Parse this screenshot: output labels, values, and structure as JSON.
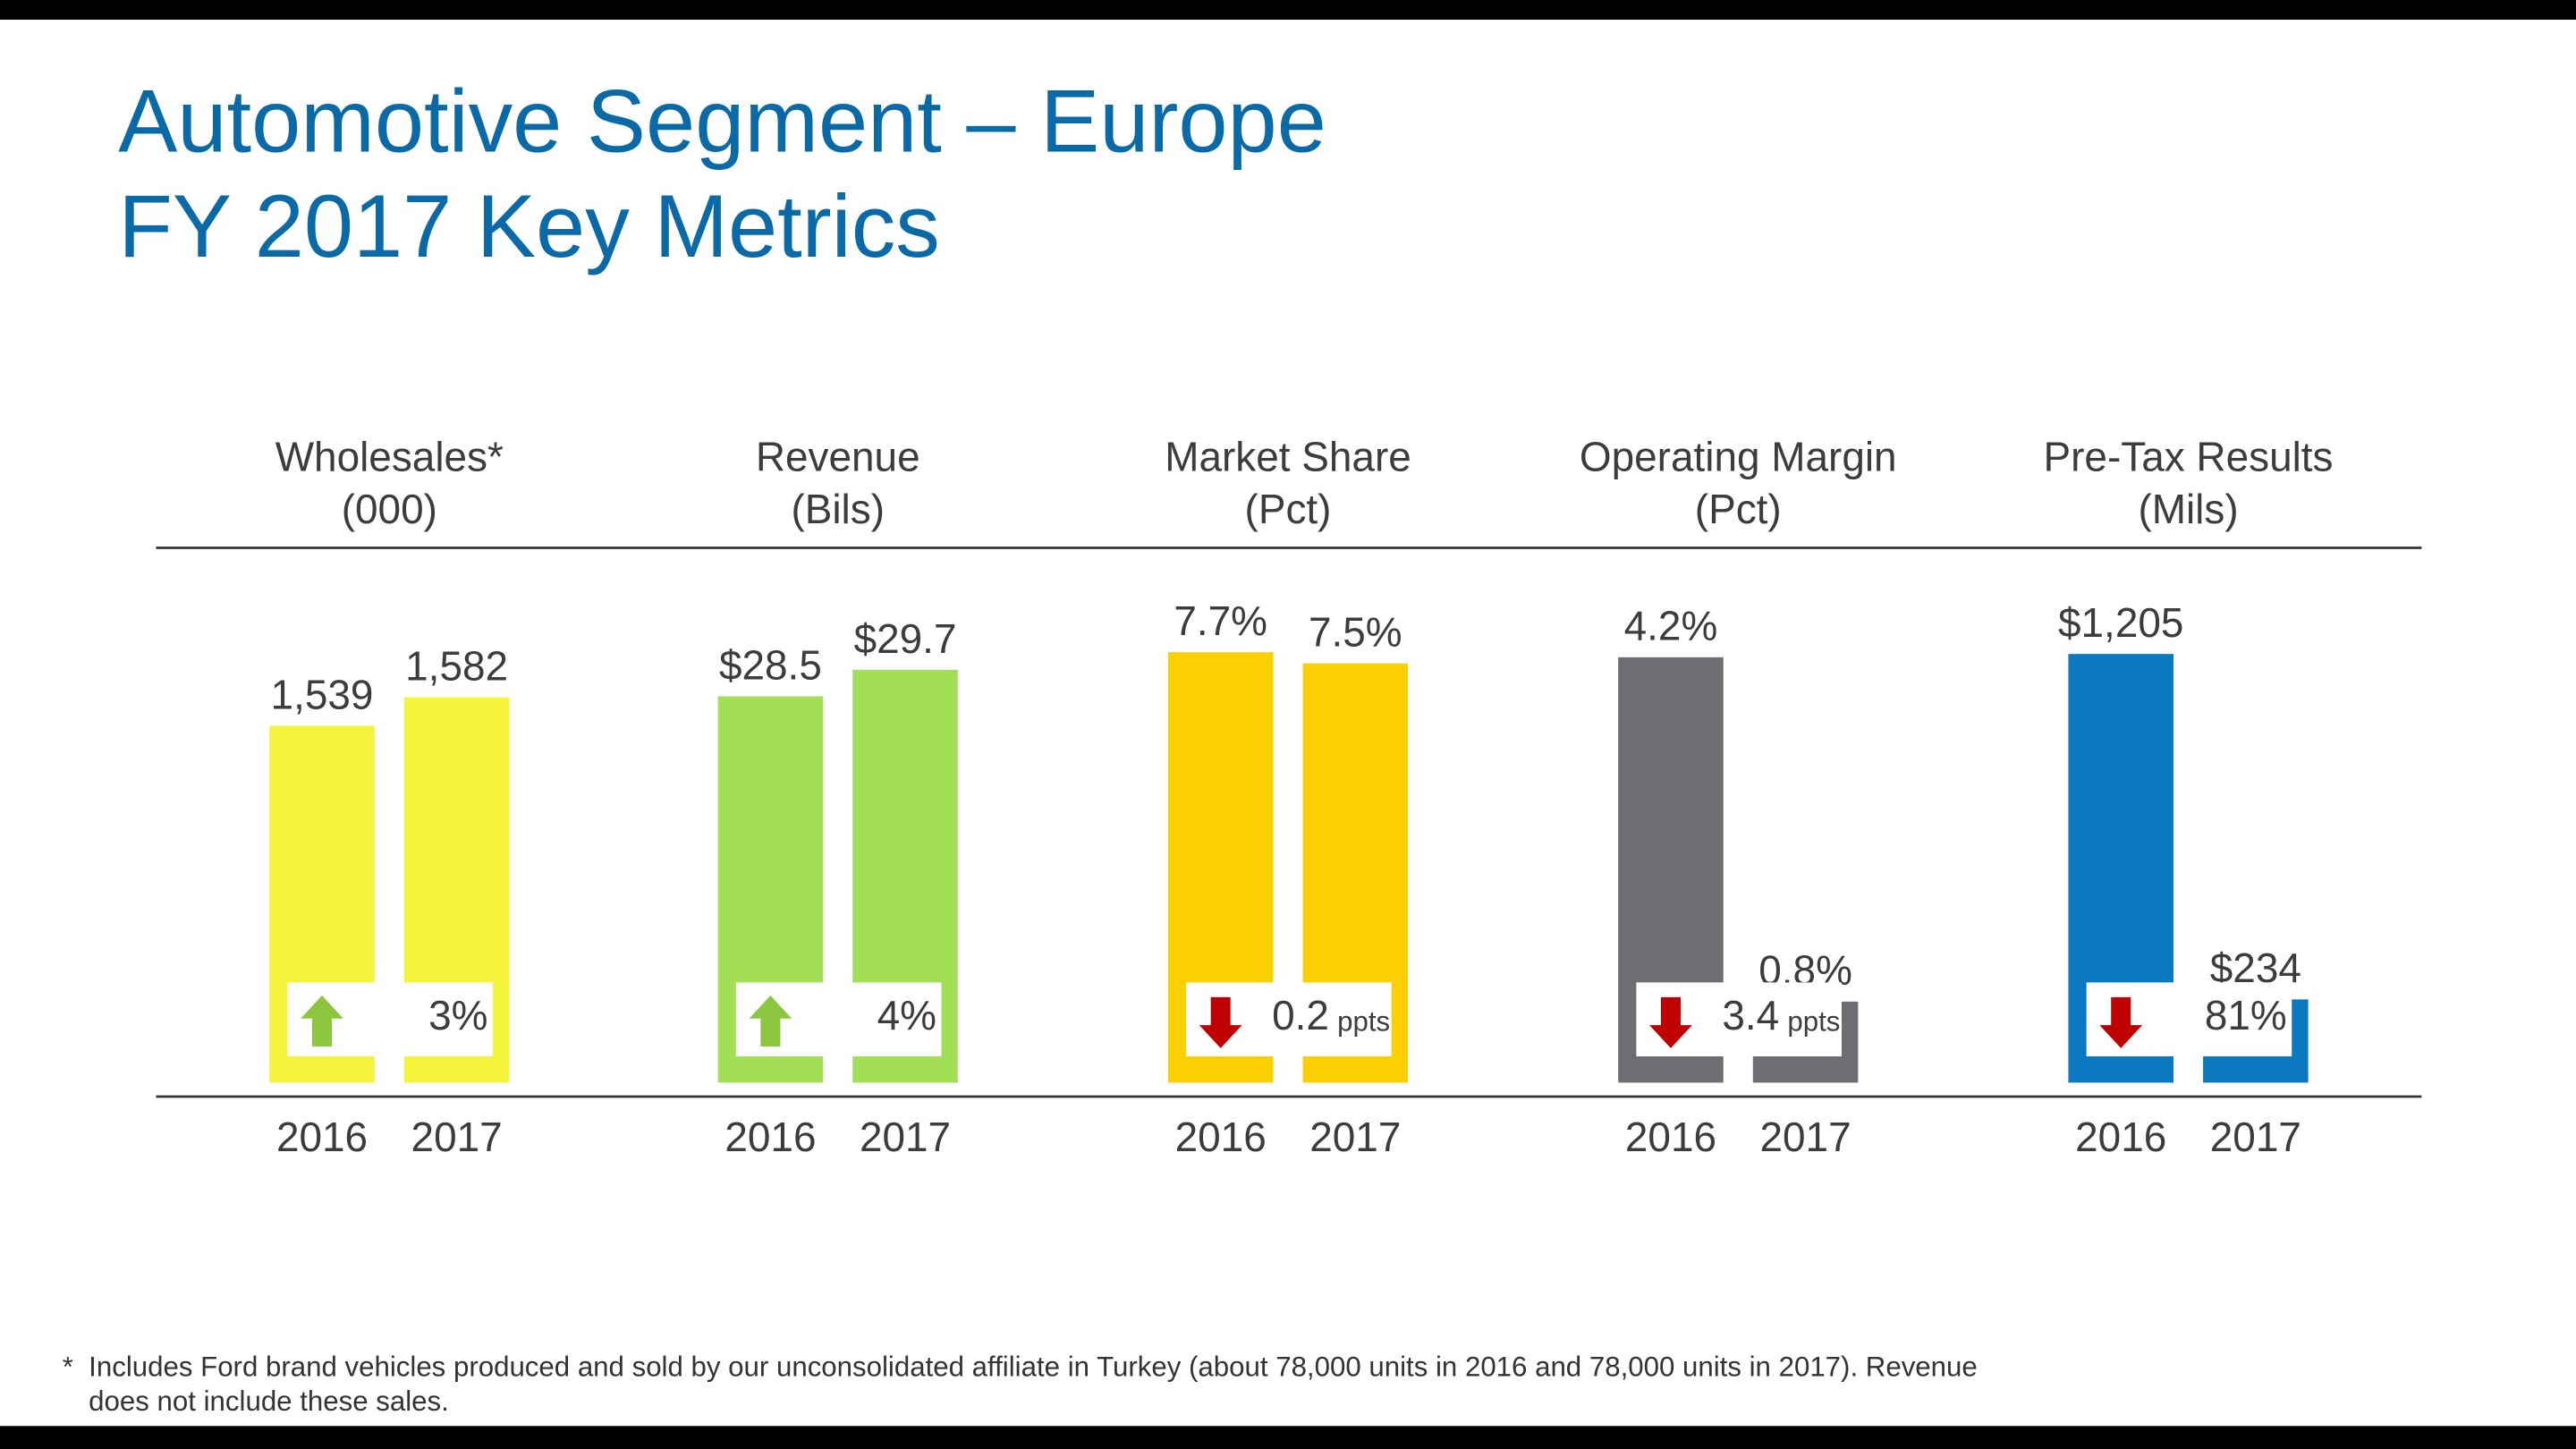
{
  "header": {
    "title_line1": "Automotive Segment – Europe",
    "title_line2": "FY 2017 Key Metrics"
  },
  "chart_data": [
    {
      "type": "bar",
      "title": "Wholesales*",
      "subtitle": "(000)",
      "categories": [
        "2016",
        "2017"
      ],
      "values": [
        1539,
        1582
      ],
      "value_labels": [
        "1,539",
        "1,582"
      ],
      "color": "#f4f43c",
      "ylim": [
        1000,
        1650
      ],
      "change": "3%",
      "direction": "up"
    },
    {
      "type": "bar",
      "title": "Revenue",
      "subtitle": "(Bils)",
      "categories": [
        "2016",
        "2017"
      ],
      "values": [
        28.5,
        29.7
      ],
      "value_labels": [
        "$28.5",
        "$29.7"
      ],
      "color": "#a2df55",
      "ylim": [
        11,
        30.5
      ],
      "change": "4%",
      "direction": "up"
    },
    {
      "type": "bar",
      "title": "Market Share",
      "subtitle": "(Pct)",
      "categories": [
        "2016",
        "2017"
      ],
      "values": [
        7.7,
        7.5
      ],
      "value_labels": [
        "7.7%",
        "7.5%"
      ],
      "color": "#fccf00",
      "ylim": [
        0,
        7.7
      ],
      "change": "0.2",
      "change_unit": "ppts",
      "direction": "down"
    },
    {
      "type": "bar",
      "title": "Operating Margin",
      "subtitle": "(Pct)",
      "categories": [
        "2016",
        "2017"
      ],
      "values": [
        4.2,
        0.8
      ],
      "value_labels": [
        "4.2%",
        "0.8%"
      ],
      "color": "#6d6e73",
      "ylim": [
        0,
        4.25
      ],
      "change": "3.4",
      "change_unit": "ppts",
      "direction": "down"
    },
    {
      "type": "bar",
      "title": "Pre-Tax Results",
      "subtitle": "(Mils)",
      "categories": [
        "2016",
        "2017"
      ],
      "values": [
        1205,
        234
      ],
      "value_labels": [
        "$1,205",
        "$234"
      ],
      "color": "#0a79bf",
      "ylim": [
        0,
        1210
      ],
      "change": "81%",
      "direction": "down"
    }
  ],
  "footnote": {
    "marker": "*",
    "lines": [
      "Includes Ford brand vehicles produced and sold by our unconsolidated affiliate in Turkey (about 78,000 units in 2016 and 78,000 units in 2017).  Revenue",
      "does not include these sales."
    ]
  }
}
